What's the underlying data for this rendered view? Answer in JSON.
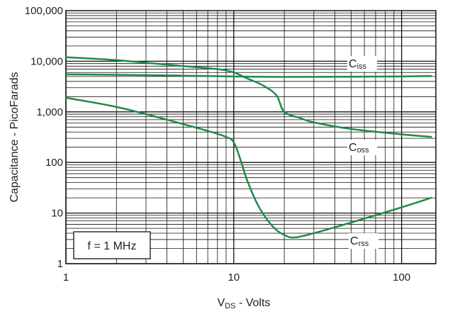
{
  "chart_data": {
    "type": "line",
    "x_scale": "log",
    "y_scale": "log",
    "xlim": [
      1,
      150
    ],
    "ylim": [
      1,
      100000
    ],
    "grid": true,
    "xlabel": {
      "main": "V",
      "sub": "DS",
      "rest": " - Volts"
    },
    "ylabel": "Capacitance - PicoFarads",
    "x_ticks": [
      {
        "value": 1,
        "label": "1"
      },
      {
        "value": 10,
        "label": "10"
      },
      {
        "value": 100,
        "label": "100"
      }
    ],
    "y_ticks": [
      {
        "value": 1,
        "label": "1"
      },
      {
        "value": 10,
        "label": "10"
      },
      {
        "value": 100,
        "label": "100"
      },
      {
        "value": 1000,
        "label": "1,000"
      },
      {
        "value": 10000,
        "label": "10,000"
      },
      {
        "value": 100000,
        "label": "100,000"
      }
    ],
    "annotation": "f = 1 MHz",
    "line_color": "#1e8a4a",
    "series": [
      {
        "name": "C",
        "sub": "iss",
        "x": [
          1,
          2,
          5,
          10,
          20,
          50,
          100,
          150
        ],
        "y": [
          5500,
          5400,
          5200,
          5000,
          4900,
          4950,
          5000,
          5100
        ]
      },
      {
        "name": "C",
        "sub": "oss",
        "x": [
          1,
          2,
          5,
          8,
          10,
          12,
          15,
          18,
          20,
          25,
          30,
          50,
          100,
          150
        ],
        "y": [
          12000,
          10500,
          8000,
          7000,
          6000,
          4600,
          3300,
          2100,
          1000,
          750,
          620,
          460,
          360,
          320
        ]
      },
      {
        "name": "C",
        "sub": "rss",
        "x": [
          1,
          2,
          4,
          7,
          9,
          10,
          11,
          12,
          14,
          17,
          20,
          23,
          30,
          50,
          100,
          150
        ],
        "y": [
          1900,
          1250,
          700,
          420,
          320,
          250,
          110,
          45,
          14,
          5.5,
          3.7,
          3.3,
          4,
          6.5,
          13,
          20
        ]
      }
    ]
  }
}
